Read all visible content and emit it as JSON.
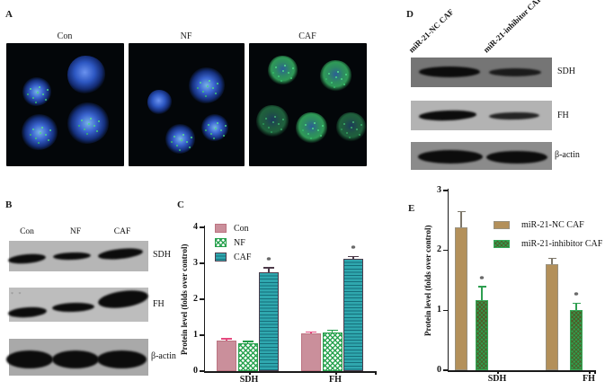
{
  "panel_a": {
    "label": "A",
    "image_titles": [
      "Con",
      "NF",
      "CAF"
    ]
  },
  "panel_b": {
    "label": "B",
    "lane_labels": [
      "Con",
      "NF",
      "CAF"
    ],
    "blot_labels": [
      "SDH",
      "FH",
      "β-actin"
    ],
    "artifact_marks": "* *"
  },
  "panel_c": {
    "label": "C"
  },
  "panel_d": {
    "label": "D",
    "lane_labels": [
      "miR-21-NC CAF",
      "miR-21-inhibitor CAF"
    ],
    "blot_labels": [
      "SDH",
      "FH",
      "β-actin"
    ]
  },
  "panel_e": {
    "label": "E"
  },
  "chart_data": [
    {
      "id": "C",
      "type": "bar",
      "title": "",
      "categories": [
        "SDH",
        "FH"
      ],
      "series": [
        {
          "name": "Con",
          "style": "solid-pink",
          "color": "#ca8f9b",
          "values": [
            0.85,
            1.05
          ],
          "errors": [
            0.06,
            0.04
          ]
        },
        {
          "name": "NF",
          "style": "green-checker",
          "color": "#28a04c",
          "values": [
            0.78,
            1.08
          ],
          "errors": [
            0.05,
            0.06
          ]
        },
        {
          "name": "CAF",
          "style": "teal-stripes",
          "color": "#2fa7ae",
          "values": [
            2.75,
            3.12
          ],
          "errors": [
            0.13,
            0.08
          ],
          "significance": [
            "*",
            "*"
          ]
        }
      ],
      "xlabel": "",
      "ylabel": "Protein level (folds over control)",
      "ylim": [
        0,
        4
      ],
      "yticks": [
        0,
        1,
        2,
        3,
        4
      ],
      "grid": false,
      "legend_position": "upper-left-inside"
    },
    {
      "id": "E",
      "type": "bar",
      "title": "",
      "categories": [
        "SDH",
        "FH"
      ],
      "series": [
        {
          "name": "miR-21-NC CAF",
          "style": "tan-solid",
          "color": "#b3905a",
          "values": [
            2.38,
            1.77
          ],
          "errors": [
            0.27,
            0.1
          ]
        },
        {
          "name": "miR-21-inhibitor CAF",
          "style": "green-cross",
          "color": "#2f9e4f",
          "values": [
            1.17,
            1.0
          ],
          "errors": [
            0.23,
            0.12
          ],
          "significance": [
            "*",
            "*"
          ]
        }
      ],
      "xlabel": "",
      "ylabel": "Protein level (folds over control)",
      "ylim": [
        0,
        3
      ],
      "yticks": [
        0,
        1,
        2,
        3
      ],
      "grid": false,
      "legend_position": "upper-right-inside"
    }
  ]
}
